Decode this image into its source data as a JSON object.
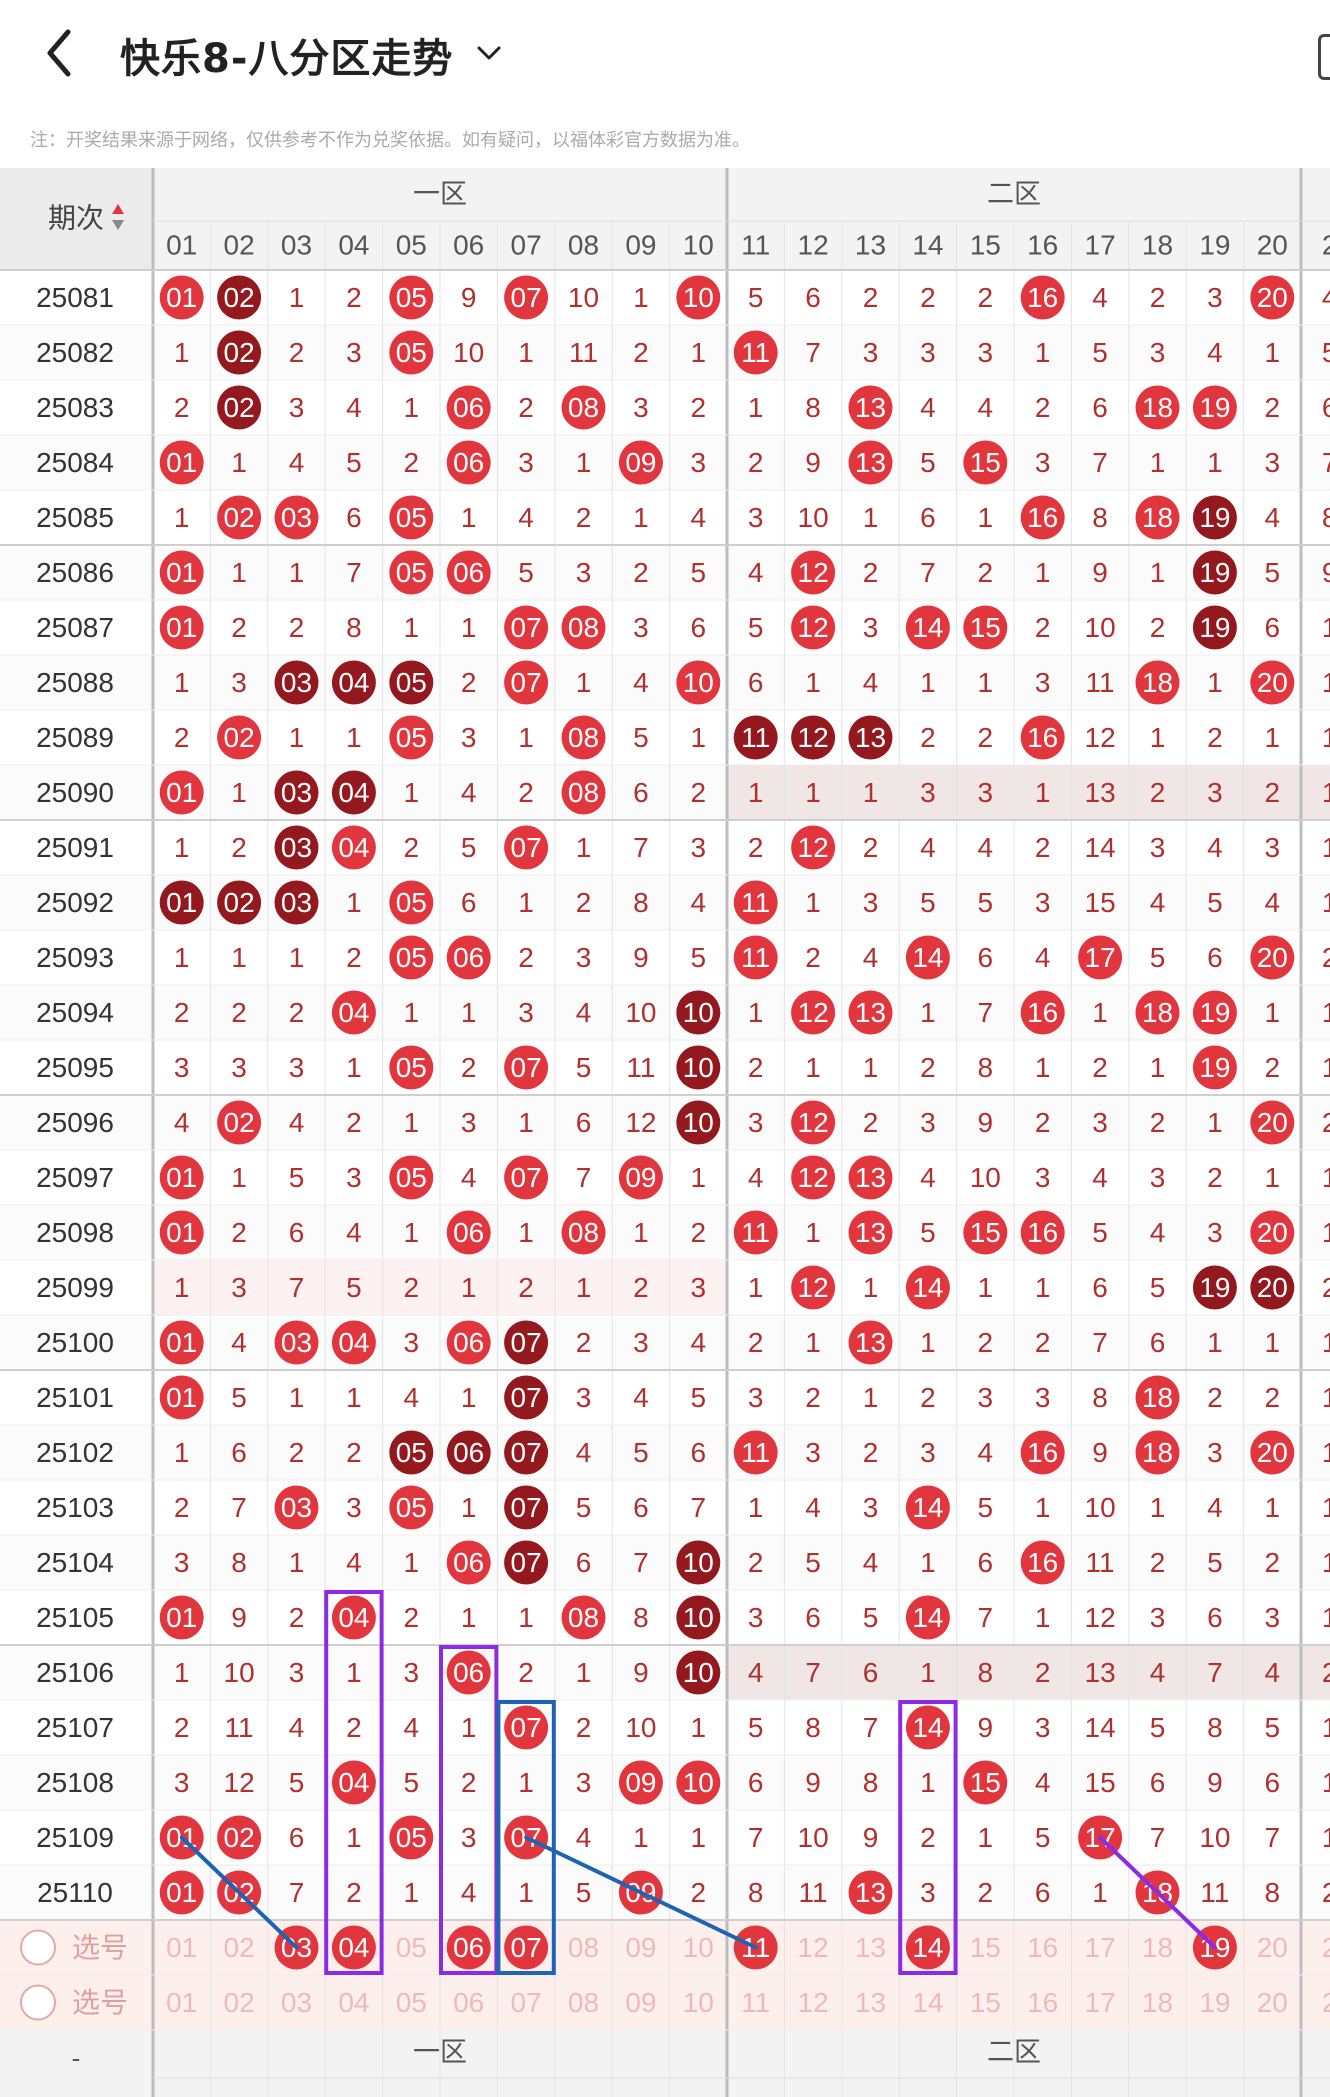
{
  "header": {
    "title": "快乐8-八分区走势",
    "note": "注：开奖结果来源于网络，仅供参考不作为兑奖依据。如有疑问，以福体彩官方数据为准。"
  },
  "table": {
    "col_header_label": "期次",
    "zone1_label": "一区",
    "zone2_label": "二区",
    "columns": [
      "01",
      "02",
      "03",
      "04",
      "05",
      "06",
      "07",
      "08",
      "09",
      "10",
      "11",
      "12",
      "13",
      "14",
      "15",
      "16",
      "17",
      "18",
      "19",
      "20",
      "2"
    ],
    "select_label": "选号",
    "footer_dash": "-",
    "rows": [
      {
        "issue": "25081",
        "cells": [
          "01",
          "02",
          "1",
          "2",
          "05",
          "9",
          "07",
          "10",
          "1",
          "10",
          "5",
          "6",
          "2",
          "2",
          "2",
          "16",
          "4",
          "2",
          "3",
          "20",
          "4"
        ]
      },
      {
        "issue": "25082",
        "cells": [
          "1",
          "02",
          "2",
          "3",
          "05",
          "10",
          "1",
          "11",
          "2",
          "1",
          "11",
          "7",
          "3",
          "3",
          "3",
          "1",
          "5",
          "3",
          "4",
          "1",
          "5"
        ]
      },
      {
        "issue": "25083",
        "cells": [
          "2",
          "02",
          "3",
          "4",
          "1",
          "06",
          "2",
          "08",
          "3",
          "2",
          "1",
          "8",
          "13",
          "4",
          "4",
          "2",
          "6",
          "18",
          "19",
          "2",
          "6"
        ]
      },
      {
        "issue": "25084",
        "cells": [
          "01",
          "1",
          "4",
          "5",
          "2",
          "06",
          "3",
          "1",
          "09",
          "3",
          "2",
          "9",
          "13",
          "5",
          "15",
          "3",
          "7",
          "1",
          "1",
          "3",
          "7"
        ]
      },
      {
        "issue": "25085",
        "cells": [
          "1",
          "02",
          "03",
          "6",
          "05",
          "1",
          "4",
          "2",
          "1",
          "4",
          "3",
          "10",
          "1",
          "6",
          "1",
          "16",
          "8",
          "18",
          "19",
          "4",
          "8"
        ]
      },
      {
        "issue": "25086",
        "cells": [
          "01",
          "1",
          "1",
          "7",
          "05",
          "06",
          "5",
          "3",
          "2",
          "5",
          "4",
          "12",
          "2",
          "7",
          "2",
          "1",
          "9",
          "1",
          "19",
          "5",
          "9"
        ]
      },
      {
        "issue": "25087",
        "cells": [
          "01",
          "2",
          "2",
          "8",
          "1",
          "1",
          "07",
          "08",
          "3",
          "6",
          "5",
          "12",
          "3",
          "14",
          "15",
          "2",
          "10",
          "2",
          "19",
          "6",
          "1"
        ]
      },
      {
        "issue": "25088",
        "cells": [
          "1",
          "3",
          "03",
          "04",
          "05",
          "2",
          "07",
          "1",
          "4",
          "10",
          "6",
          "1",
          "4",
          "1",
          "1",
          "3",
          "11",
          "18",
          "1",
          "20",
          "1"
        ]
      },
      {
        "issue": "25089",
        "cells": [
          "2",
          "02",
          "1",
          "1",
          "05",
          "3",
          "1",
          "08",
          "5",
          "1",
          "11",
          "12",
          "13",
          "2",
          "2",
          "16",
          "12",
          "1",
          "2",
          "1",
          "1"
        ]
      },
      {
        "issue": "25090",
        "cells": [
          "01",
          "1",
          "03",
          "04",
          "1",
          "4",
          "2",
          "08",
          "6",
          "2",
          "1",
          "1",
          "1",
          "3",
          "3",
          "1",
          "13",
          "2",
          "3",
          "2",
          "1"
        ]
      },
      {
        "issue": "25091",
        "cells": [
          "1",
          "2",
          "03",
          "04",
          "2",
          "5",
          "07",
          "1",
          "7",
          "3",
          "2",
          "12",
          "2",
          "4",
          "4",
          "2",
          "14",
          "3",
          "4",
          "3",
          "1"
        ]
      },
      {
        "issue": "25092",
        "cells": [
          "01",
          "02",
          "03",
          "1",
          "05",
          "6",
          "1",
          "2",
          "8",
          "4",
          "11",
          "1",
          "3",
          "5",
          "5",
          "3",
          "15",
          "4",
          "5",
          "4",
          "1"
        ]
      },
      {
        "issue": "25093",
        "cells": [
          "1",
          "1",
          "1",
          "2",
          "05",
          "06",
          "2",
          "3",
          "9",
          "5",
          "11",
          "2",
          "4",
          "14",
          "6",
          "4",
          "17",
          "5",
          "6",
          "20",
          "2"
        ]
      },
      {
        "issue": "25094",
        "cells": [
          "2",
          "2",
          "2",
          "04",
          "1",
          "1",
          "3",
          "4",
          "10",
          "10",
          "1",
          "12",
          "13",
          "1",
          "7",
          "16",
          "1",
          "18",
          "19",
          "1",
          "1"
        ]
      },
      {
        "issue": "25095",
        "cells": [
          "3",
          "3",
          "3",
          "1",
          "05",
          "2",
          "07",
          "5",
          "11",
          "10",
          "2",
          "1",
          "1",
          "2",
          "8",
          "1",
          "2",
          "1",
          "19",
          "2",
          "1"
        ]
      },
      {
        "issue": "25096",
        "cells": [
          "4",
          "02",
          "4",
          "2",
          "1",
          "3",
          "1",
          "6",
          "12",
          "10",
          "3",
          "12",
          "2",
          "3",
          "9",
          "2",
          "3",
          "2",
          "1",
          "20",
          "2"
        ]
      },
      {
        "issue": "25097",
        "cells": [
          "01",
          "1",
          "5",
          "3",
          "05",
          "4",
          "07",
          "7",
          "09",
          "1",
          "4",
          "12",
          "13",
          "4",
          "10",
          "3",
          "4",
          "3",
          "2",
          "1",
          "1"
        ]
      },
      {
        "issue": "25098",
        "cells": [
          "01",
          "2",
          "6",
          "4",
          "1",
          "06",
          "1",
          "08",
          "1",
          "2",
          "11",
          "1",
          "13",
          "5",
          "15",
          "16",
          "5",
          "4",
          "3",
          "20",
          "1"
        ]
      },
      {
        "issue": "25099",
        "cells": [
          "1",
          "3",
          "7",
          "5",
          "2",
          "1",
          "2",
          "1",
          "2",
          "3",
          "1",
          "12",
          "1",
          "14",
          "1",
          "1",
          "6",
          "5",
          "19",
          "20",
          "2"
        ]
      },
      {
        "issue": "25100",
        "cells": [
          "01",
          "4",
          "03",
          "04",
          "3",
          "06",
          "07",
          "2",
          "3",
          "4",
          "2",
          "1",
          "13",
          "1",
          "2",
          "2",
          "7",
          "6",
          "1",
          "1",
          "1"
        ]
      },
      {
        "issue": "25101",
        "cells": [
          "01",
          "5",
          "1",
          "1",
          "4",
          "1",
          "07",
          "3",
          "4",
          "5",
          "3",
          "2",
          "1",
          "2",
          "3",
          "3",
          "8",
          "18",
          "2",
          "2",
          "1"
        ]
      },
      {
        "issue": "25102",
        "cells": [
          "1",
          "6",
          "2",
          "2",
          "05",
          "06",
          "07",
          "4",
          "5",
          "6",
          "11",
          "3",
          "2",
          "3",
          "4",
          "16",
          "9",
          "18",
          "3",
          "20",
          "1"
        ]
      },
      {
        "issue": "25103",
        "cells": [
          "2",
          "7",
          "03",
          "3",
          "05",
          "1",
          "07",
          "5",
          "6",
          "7",
          "1",
          "4",
          "3",
          "14",
          "5",
          "1",
          "10",
          "1",
          "4",
          "1",
          "1"
        ]
      },
      {
        "issue": "25104",
        "cells": [
          "3",
          "8",
          "1",
          "4",
          "1",
          "06",
          "07",
          "6",
          "7",
          "10",
          "2",
          "5",
          "4",
          "1",
          "6",
          "16",
          "11",
          "2",
          "5",
          "2",
          "1"
        ]
      },
      {
        "issue": "25105",
        "cells": [
          "01",
          "9",
          "2",
          "04",
          "2",
          "1",
          "1",
          "08",
          "8",
          "10",
          "3",
          "6",
          "5",
          "14",
          "7",
          "1",
          "12",
          "3",
          "6",
          "3",
          "1"
        ]
      },
      {
        "issue": "25106",
        "cells": [
          "1",
          "10",
          "3",
          "1",
          "3",
          "06",
          "2",
          "1",
          "9",
          "10",
          "4",
          "7",
          "6",
          "1",
          "8",
          "2",
          "13",
          "4",
          "7",
          "4",
          "2"
        ]
      },
      {
        "issue": "25107",
        "cells": [
          "2",
          "11",
          "4",
          "2",
          "4",
          "1",
          "07",
          "2",
          "10",
          "1",
          "5",
          "8",
          "7",
          "14",
          "9",
          "3",
          "14",
          "5",
          "8",
          "5",
          "1"
        ]
      },
      {
        "issue": "25108",
        "cells": [
          "3",
          "12",
          "5",
          "04",
          "5",
          "2",
          "1",
          "3",
          "09",
          "10",
          "6",
          "9",
          "8",
          "1",
          "15",
          "4",
          "15",
          "6",
          "9",
          "6",
          "1"
        ]
      },
      {
        "issue": "25109",
        "cells": [
          "01",
          "02",
          "6",
          "1",
          "05",
          "3",
          "07",
          "4",
          "1",
          "1",
          "7",
          "10",
          "9",
          "2",
          "1",
          "5",
          "17",
          "7",
          "10",
          "7",
          "1"
        ]
      },
      {
        "issue": "25110",
        "cells": [
          "01",
          "02",
          "7",
          "2",
          "1",
          "4",
          "1",
          "5",
          "09",
          "2",
          "8",
          "11",
          "13",
          "3",
          "2",
          "6",
          "1",
          "18",
          "11",
          "8",
          "2"
        ]
      }
    ],
    "dark_hits": [
      [
        1,
        2
      ],
      [
        2,
        2
      ],
      [
        3,
        2
      ],
      [
        5,
        19
      ],
      [
        6,
        19
      ],
      [
        7,
        19
      ],
      [
        8,
        3
      ],
      [
        8,
        4
      ],
      [
        8,
        5
      ],
      [
        9,
        11
      ],
      [
        9,
        12
      ],
      [
        9,
        13
      ],
      [
        10,
        3
      ],
      [
        10,
        4
      ],
      [
        11,
        3
      ],
      [
        12,
        1
      ],
      [
        12,
        2
      ],
      [
        12,
        3
      ],
      [
        14,
        10
      ],
      [
        15,
        10
      ],
      [
        16,
        10
      ],
      [
        19,
        19
      ],
      [
        19,
        20
      ],
      [
        20,
        7
      ],
      [
        21,
        7
      ],
      [
        22,
        5
      ],
      [
        22,
        6
      ],
      [
        22,
        7
      ],
      [
        23,
        7
      ],
      [
        24,
        7
      ],
      [
        24,
        10
      ],
      [
        25,
        10
      ],
      [
        26,
        10
      ]
    ],
    "select_rows": [
      {
        "label": "选号",
        "selected": [
          3,
          4,
          6,
          7,
          11,
          14,
          19
        ]
      },
      {
        "label": "选号",
        "selected": []
      }
    ]
  },
  "colors": {
    "hit": "#e2363f",
    "hit_dark": "#93191e",
    "miss_text": "#b03030",
    "header_bg": "#f3f3f3",
    "select_bg": "#fdf0ec",
    "annotation_purple": "#8b2be2",
    "annotation_blue": "#1f63b4"
  }
}
